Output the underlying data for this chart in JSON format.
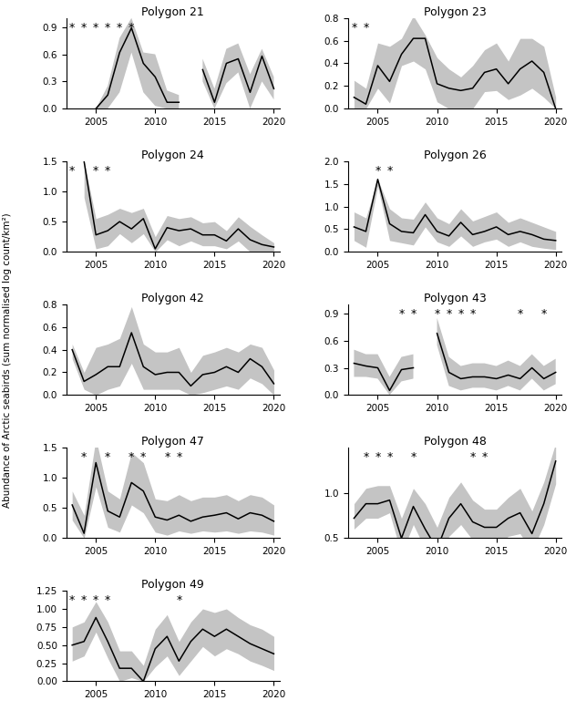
{
  "years": [
    2003,
    2004,
    2005,
    2006,
    2007,
    2008,
    2009,
    2010,
    2011,
    2012,
    2013,
    2014,
    2015,
    2016,
    2017,
    2018,
    2019,
    2020
  ],
  "polygons": {
    "21": {
      "title": "Polygon 21",
      "ylim": [
        0,
        1.0
      ],
      "yticks": [
        0.0,
        0.3,
        0.6,
        0.9
      ],
      "median": [
        null,
        null,
        0.0,
        0.15,
        0.62,
        0.89,
        0.5,
        0.35,
        0.07,
        0.07,
        null,
        0.43,
        0.07,
        0.5,
        0.55,
        0.18,
        0.58,
        0.22
      ],
      "mad_lo": [
        null,
        null,
        0.0,
        0.0,
        0.18,
        0.62,
        0.18,
        0.03,
        0.0,
        0.0,
        null,
        0.3,
        0.0,
        0.28,
        0.4,
        0.0,
        0.3,
        0.1
      ],
      "mad_hi": [
        null,
        null,
        0.0,
        0.25,
        0.78,
        1.0,
        0.62,
        0.6,
        0.2,
        0.15,
        null,
        0.55,
        0.22,
        0.66,
        0.72,
        0.38,
        0.66,
        0.35
      ],
      "low_sample_years": [
        2003,
        2004,
        2005,
        2006,
        2007,
        2008
      ]
    },
    "23": {
      "title": "Polygon 23",
      "ylim": [
        0,
        0.8
      ],
      "yticks": [
        0.0,
        0.2,
        0.4,
        0.6,
        0.8
      ],
      "median": [
        0.1,
        0.04,
        0.38,
        0.24,
        0.48,
        0.62,
        0.62,
        0.22,
        0.18,
        0.16,
        0.18,
        0.32,
        0.35,
        0.22,
        0.35,
        0.42,
        0.32,
        0.0
      ],
      "mad_lo": [
        0.0,
        0.0,
        0.18,
        0.05,
        0.38,
        0.42,
        0.35,
        0.06,
        0.0,
        0.0,
        0.0,
        0.15,
        0.16,
        0.08,
        0.12,
        0.18,
        0.1,
        0.0
      ],
      "mad_hi": [
        0.25,
        0.18,
        0.58,
        0.55,
        0.62,
        0.82,
        0.65,
        0.45,
        0.35,
        0.28,
        0.38,
        0.52,
        0.58,
        0.42,
        0.62,
        0.62,
        0.55,
        0.1
      ],
      "low_sample_years": [
        2003,
        2004
      ]
    },
    "24": {
      "title": "Polygon 24",
      "ylim": [
        0,
        1.5
      ],
      "yticks": [
        0.0,
        0.5,
        1.0,
        1.5
      ],
      "median": [
        null,
        1.5,
        0.28,
        0.35,
        0.5,
        0.38,
        0.55,
        0.05,
        0.4,
        0.35,
        0.38,
        0.28,
        0.28,
        0.18,
        0.38,
        0.2,
        0.12,
        0.08
      ],
      "mad_lo": [
        null,
        0.9,
        0.05,
        0.1,
        0.3,
        0.15,
        0.3,
        0.0,
        0.2,
        0.1,
        0.18,
        0.1,
        0.1,
        0.05,
        0.18,
        0.0,
        0.0,
        0.0
      ],
      "mad_hi": [
        null,
        1.5,
        0.55,
        0.62,
        0.72,
        0.65,
        0.72,
        0.25,
        0.6,
        0.55,
        0.58,
        0.48,
        0.5,
        0.35,
        0.58,
        0.42,
        0.28,
        0.15
      ],
      "low_sample_years": [
        2003,
        2005,
        2006
      ]
    },
    "26": {
      "title": "Polygon 26",
      "ylim": [
        0,
        2.0
      ],
      "yticks": [
        0.0,
        0.5,
        1.0,
        1.5,
        2.0
      ],
      "median": [
        0.55,
        0.45,
        1.6,
        0.62,
        0.45,
        0.42,
        0.82,
        0.45,
        0.35,
        0.65,
        0.38,
        0.45,
        0.55,
        0.38,
        0.45,
        0.38,
        0.28,
        0.25
      ],
      "mad_lo": [
        0.25,
        0.1,
        1.45,
        0.25,
        0.2,
        0.15,
        0.55,
        0.22,
        0.12,
        0.35,
        0.12,
        0.22,
        0.28,
        0.12,
        0.22,
        0.12,
        0.08,
        0.05
      ],
      "mad_hi": [
        0.88,
        0.75,
        1.6,
        0.95,
        0.75,
        0.72,
        1.1,
        0.75,
        0.62,
        0.95,
        0.68,
        0.78,
        0.88,
        0.65,
        0.75,
        0.65,
        0.55,
        0.45
      ],
      "low_sample_years": [
        2005,
        2006
      ]
    },
    "42": {
      "title": "Polygon 42",
      "ylim": [
        0,
        0.8
      ],
      "yticks": [
        0.0,
        0.2,
        0.4,
        0.6,
        0.8
      ],
      "median": [
        0.4,
        0.12,
        0.18,
        0.25,
        0.25,
        0.55,
        0.25,
        0.18,
        0.2,
        0.2,
        0.08,
        0.18,
        0.2,
        0.25,
        0.2,
        0.32,
        0.25,
        0.1
      ],
      "mad_lo": [
        0.32,
        0.05,
        0.0,
        0.05,
        0.08,
        0.28,
        0.05,
        0.05,
        0.05,
        0.05,
        0.0,
        0.02,
        0.05,
        0.08,
        0.05,
        0.15,
        0.1,
        0.0
      ],
      "mad_hi": [
        0.45,
        0.2,
        0.42,
        0.45,
        0.5,
        0.78,
        0.45,
        0.38,
        0.38,
        0.42,
        0.2,
        0.35,
        0.38,
        0.42,
        0.38,
        0.45,
        0.42,
        0.22
      ],
      "low_sample_years": []
    },
    "43": {
      "title": "Polygon 43",
      "ylim": [
        0,
        1.0
      ],
      "yticks": [
        0.0,
        0.3,
        0.6,
        0.9
      ],
      "median": [
        0.35,
        0.32,
        0.3,
        0.05,
        0.28,
        0.3,
        null,
        0.68,
        0.25,
        0.18,
        0.2,
        0.2,
        0.18,
        0.22,
        0.18,
        0.3,
        0.18,
        0.25
      ],
      "mad_lo": [
        0.2,
        0.2,
        0.18,
        0.0,
        0.15,
        0.18,
        null,
        0.55,
        0.1,
        0.05,
        0.08,
        0.08,
        0.05,
        0.1,
        0.05,
        0.18,
        0.05,
        0.12
      ],
      "mad_hi": [
        0.5,
        0.45,
        0.45,
        0.2,
        0.42,
        0.45,
        null,
        0.85,
        0.42,
        0.32,
        0.35,
        0.35,
        0.32,
        0.38,
        0.32,
        0.45,
        0.32,
        0.4
      ],
      "low_sample_years": [
        2007,
        2008,
        2010,
        2011,
        2012,
        2013,
        2017,
        2019
      ]
    },
    "47": {
      "title": "Polygon 47",
      "ylim": [
        0,
        1.5
      ],
      "yticks": [
        0.0,
        0.5,
        1.0,
        1.5
      ],
      "median": [
        0.55,
        0.08,
        1.25,
        0.45,
        0.35,
        0.92,
        0.78,
        0.35,
        0.3,
        0.38,
        0.28,
        0.35,
        0.38,
        0.42,
        0.32,
        0.42,
        0.38,
        0.28
      ],
      "mad_lo": [
        0.3,
        0.0,
        0.85,
        0.18,
        0.1,
        0.55,
        0.42,
        0.1,
        0.05,
        0.12,
        0.08,
        0.12,
        0.1,
        0.12,
        0.08,
        0.12,
        0.1,
        0.05
      ],
      "mad_hi": [
        0.78,
        0.38,
        1.65,
        0.78,
        0.65,
        1.42,
        1.25,
        0.65,
        0.62,
        0.72,
        0.62,
        0.68,
        0.68,
        0.72,
        0.62,
        0.72,
        0.68,
        0.55
      ],
      "low_sample_years": [
        2004,
        2006,
        2008,
        2009,
        2011,
        2012
      ]
    },
    "48": {
      "title": "Polygon 48",
      "ylim": [
        0.5,
        1.5
      ],
      "yticks": [
        0.5,
        1.0
      ],
      "median": [
        0.72,
        0.88,
        0.88,
        0.92,
        0.5,
        0.85,
        0.6,
        0.38,
        0.72,
        0.88,
        0.68,
        0.62,
        0.62,
        0.72,
        0.78,
        0.55,
        0.88,
        1.35
      ],
      "mad_lo": [
        0.6,
        0.72,
        0.72,
        0.78,
        0.32,
        0.65,
        0.38,
        0.2,
        0.52,
        0.65,
        0.48,
        0.42,
        0.42,
        0.52,
        0.55,
        0.35,
        0.65,
        1.1
      ],
      "mad_hi": [
        0.88,
        1.05,
        1.08,
        1.08,
        0.72,
        1.05,
        0.88,
        0.62,
        0.95,
        1.12,
        0.92,
        0.82,
        0.82,
        0.95,
        1.05,
        0.8,
        1.12,
        1.55
      ],
      "low_sample_years": [
        2004,
        2005,
        2006,
        2008,
        2013,
        2014
      ]
    },
    "49": {
      "title": "Polygon 49",
      "ylim": [
        0,
        1.25
      ],
      "yticks": [
        0.0,
        0.25,
        0.5,
        0.75,
        1.0,
        1.25
      ],
      "median": [
        0.5,
        0.55,
        0.88,
        0.55,
        0.18,
        0.18,
        0.0,
        0.45,
        0.62,
        0.28,
        0.55,
        0.72,
        0.62,
        0.72,
        0.62,
        0.52,
        0.45,
        0.38
      ],
      "mad_lo": [
        0.28,
        0.35,
        0.68,
        0.32,
        0.0,
        0.05,
        0.0,
        0.2,
        0.35,
        0.08,
        0.28,
        0.48,
        0.35,
        0.45,
        0.38,
        0.28,
        0.22,
        0.15
      ],
      "mad_hi": [
        0.75,
        0.82,
        1.1,
        0.82,
        0.42,
        0.42,
        0.22,
        0.72,
        0.92,
        0.55,
        0.82,
        1.0,
        0.95,
        1.0,
        0.88,
        0.78,
        0.72,
        0.62
      ],
      "low_sample_years": [
        2003,
        2004,
        2005,
        2006,
        2012
      ]
    }
  },
  "line_color": "black",
  "fill_color": "#b0b0b0",
  "title_fontsize": 9,
  "tick_fontsize": 7.5,
  "ylabel": "Abundance of Arctic seabirds (sum normalised log count/km²)"
}
